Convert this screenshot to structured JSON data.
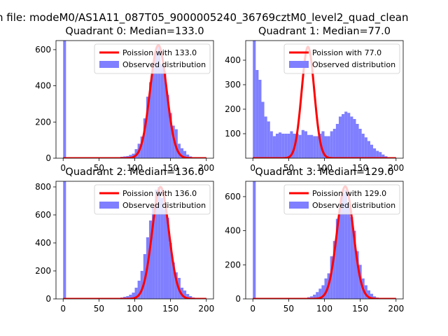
{
  "suptitle": "n file: modeM0/AS1A11_087T05_9000005240_36769cztM0_level2_quad_clean",
  "chart_data": [
    {
      "type": "bar",
      "title": "Quadrant 0: Median=133.0",
      "xlim": [
        -10,
        210
      ],
      "ylim": [
        0,
        650
      ],
      "xticks": [
        0,
        50,
        100,
        150,
        200
      ],
      "yticks": [
        0,
        200,
        400,
        600
      ],
      "bin_width": 4,
      "hist_bins": [
        0,
        80,
        84,
        88,
        92,
        96,
        100,
        104,
        108,
        112,
        116,
        120,
        124,
        128,
        132,
        136,
        140,
        144,
        148,
        152,
        156,
        160,
        164,
        168,
        172,
        176,
        180
      ],
      "hist_counts": [
        650,
        8,
        10,
        12,
        18,
        25,
        50,
        80,
        120,
        220,
        340,
        420,
        500,
        590,
        620,
        520,
        480,
        350,
        250,
        180,
        160,
        80,
        55,
        40,
        20,
        10,
        5
      ],
      "poisson_peak": 625,
      "legend": {
        "curve": "Poission with 133.0",
        "hist": "Observed distribution"
      },
      "colors": {
        "hist": "#7f7fff",
        "curve": "#ff0000"
      }
    },
    {
      "type": "bar",
      "title": "Quadrant 1: Median=77.0",
      "xlim": [
        -10,
        210
      ],
      "ylim": [
        0,
        480
      ],
      "xticks": [
        0,
        50,
        100,
        150,
        200
      ],
      "yticks": [
        100,
        200,
        300,
        400
      ],
      "bin_width": 4,
      "hist_bins": [
        0,
        4,
        8,
        12,
        16,
        20,
        24,
        28,
        32,
        36,
        40,
        44,
        48,
        52,
        56,
        60,
        64,
        68,
        72,
        76,
        80,
        84,
        88,
        92,
        96,
        100,
        104,
        108,
        112,
        116,
        120,
        124,
        128,
        132,
        136,
        140,
        144,
        148,
        152,
        156,
        160,
        164,
        168,
        172,
        176,
        180,
        184
      ],
      "hist_counts": [
        480,
        360,
        320,
        230,
        170,
        150,
        110,
        90,
        100,
        105,
        100,
        100,
        100,
        110,
        100,
        100,
        95,
        115,
        110,
        95,
        95,
        90,
        90,
        100,
        110,
        90,
        90,
        110,
        120,
        140,
        170,
        180,
        190,
        185,
        170,
        160,
        140,
        120,
        100,
        85,
        70,
        55,
        40,
        30,
        25,
        15,
        8
      ],
      "poisson_peak": 455,
      "legend": {
        "curve": "Poission with 77.0",
        "hist": "Observed distribution"
      },
      "colors": {
        "hist": "#7f7fff",
        "curve": "#ff0000"
      }
    },
    {
      "type": "bar",
      "title": "Quadrant 2: Median=136.0",
      "xlim": [
        -10,
        210
      ],
      "ylim": [
        0,
        840
      ],
      "xticks": [
        0,
        50,
        100,
        150,
        200
      ],
      "yticks": [
        0,
        200,
        400,
        600,
        800
      ],
      "bin_width": 4,
      "hist_bins": [
        0,
        80,
        84,
        88,
        92,
        96,
        100,
        104,
        108,
        112,
        116,
        120,
        124,
        128,
        132,
        136,
        140,
        144,
        148,
        152,
        156,
        160,
        164,
        168,
        172,
        176,
        180,
        184
      ],
      "hist_counts": [
        840,
        10,
        15,
        20,
        30,
        45,
        80,
        130,
        200,
        320,
        440,
        560,
        660,
        780,
        800,
        720,
        640,
        580,
        400,
        260,
        190,
        150,
        80,
        60,
        35,
        20,
        10,
        5
      ],
      "poisson_peak": 800,
      "legend": {
        "curve": "Poission with 136.0",
        "hist": "Observed distribution"
      },
      "colors": {
        "hist": "#7f7fff",
        "curve": "#ff0000"
      }
    },
    {
      "type": "bar",
      "title": "Quadrant 3: Median=129.0",
      "xlim": [
        -10,
        210
      ],
      "ylim": [
        0,
        690
      ],
      "xticks": [
        0,
        50,
        100,
        150,
        200
      ],
      "yticks": [
        0,
        200,
        400,
        600
      ],
      "bin_width": 4,
      "hist_bins": [
        0,
        76,
        80,
        84,
        88,
        92,
        96,
        100,
        104,
        108,
        112,
        116,
        120,
        124,
        128,
        132,
        136,
        140,
        144,
        148,
        152,
        156,
        160,
        164,
        168,
        172
      ],
      "hist_counts": [
        690,
        10,
        15,
        25,
        40,
        60,
        80,
        120,
        150,
        250,
        340,
        470,
        560,
        620,
        640,
        560,
        480,
        400,
        280,
        200,
        120,
        80,
        50,
        30,
        15,
        8
      ],
      "poisson_peak": 660,
      "legend": {
        "curve": "Poission with 129.0",
        "hist": "Observed distribution"
      },
      "colors": {
        "hist": "#7f7fff",
        "curve": "#ff0000"
      }
    }
  ]
}
